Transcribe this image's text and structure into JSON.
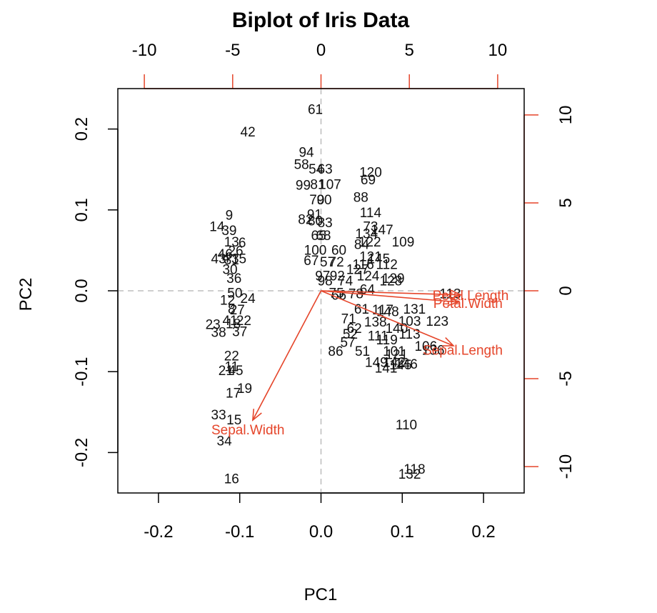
{
  "chart_data": {
    "type": "scatter",
    "title": "Biplot of Iris Data",
    "xlabel": "PC1",
    "ylabel": "PC2",
    "xlim": [
      -0.25,
      0.25
    ],
    "ylim": [
      -0.25,
      0.25
    ],
    "xticks": [
      "-0.2",
      "-0.1",
      "0.0",
      "0.1",
      "0.2"
    ],
    "yticks": [
      "-0.2",
      "-0.1",
      "0.0",
      "0.1",
      "0.2"
    ],
    "xtick_values": [
      -0.2,
      -0.1,
      0.0,
      0.1,
      0.2
    ],
    "ytick_values": [
      -0.2,
      -0.1,
      0.0,
      0.1,
      0.2
    ],
    "top_axis": {
      "range": [
        -11.5,
        11.5
      ],
      "ticks": [
        "-10",
        "-5",
        "0",
        "5",
        "10"
      ],
      "tick_values": [
        -10,
        -5,
        0,
        5,
        10
      ]
    },
    "right_axis": {
      "range": [
        -11.5,
        11.5
      ],
      "ticks": [
        "-10",
        "-5",
        "0",
        "5",
        "10"
      ],
      "tick_values": [
        -10,
        -5,
        0,
        5,
        10
      ]
    },
    "reference_lines": {
      "x": 0,
      "y": 0
    },
    "colors": {
      "points": "#111111",
      "loadings": "#e5452a",
      "reference": "#bdbdbd",
      "axis": "#000000"
    },
    "points": [
      {
        "label": "61",
        "x": -0.007,
        "y": 0.225
      },
      {
        "label": "42",
        "x": -0.09,
        "y": 0.197
      },
      {
        "label": "94",
        "x": -0.018,
        "y": 0.172
      },
      {
        "label": "58",
        "x": -0.024,
        "y": 0.157
      },
      {
        "label": "54",
        "x": -0.006,
        "y": 0.151
      },
      {
        "label": "63",
        "x": 0.005,
        "y": 0.151
      },
      {
        "label": "120",
        "x": 0.061,
        "y": 0.147
      },
      {
        "label": "69",
        "x": 0.058,
        "y": 0.138
      },
      {
        "label": "99",
        "x": -0.022,
        "y": 0.131
      },
      {
        "label": "81",
        "x": -0.004,
        "y": 0.132
      },
      {
        "label": "107",
        "x": 0.011,
        "y": 0.132
      },
      {
        "label": "88",
        "x": 0.049,
        "y": 0.116
      },
      {
        "label": "70",
        "x": -0.005,
        "y": 0.113
      },
      {
        "label": "90",
        "x": 0.004,
        "y": 0.113
      },
      {
        "label": "114",
        "x": 0.061,
        "y": 0.097
      },
      {
        "label": "91",
        "x": -0.008,
        "y": 0.095
      },
      {
        "label": "82",
        "x": -0.019,
        "y": 0.089
      },
      {
        "label": "80",
        "x": -0.007,
        "y": 0.087
      },
      {
        "label": "83",
        "x": 0.005,
        "y": 0.085
      },
      {
        "label": "73",
        "x": 0.061,
        "y": 0.08
      },
      {
        "label": "147",
        "x": 0.075,
        "y": 0.076
      },
      {
        "label": "134",
        "x": 0.056,
        "y": 0.071
      },
      {
        "label": "65",
        "x": -0.003,
        "y": 0.069
      },
      {
        "label": "68",
        "x": 0.003,
        "y": 0.069
      },
      {
        "label": "109",
        "x": 0.101,
        "y": 0.061
      },
      {
        "label": "122",
        "x": 0.06,
        "y": 0.061
      },
      {
        "label": "84",
        "x": 0.05,
        "y": 0.058
      },
      {
        "label": "100",
        "x": -0.007,
        "y": 0.051
      },
      {
        "label": "60",
        "x": 0.022,
        "y": 0.051
      },
      {
        "label": "121",
        "x": 0.061,
        "y": 0.043
      },
      {
        "label": "145",
        "x": 0.071,
        "y": 0.04
      },
      {
        "label": "67",
        "x": -0.012,
        "y": 0.038
      },
      {
        "label": "57",
        "x": 0.008,
        "y": 0.036
      },
      {
        "label": "72",
        "x": 0.019,
        "y": 0.036
      },
      {
        "label": "116",
        "x": 0.052,
        "y": 0.033
      },
      {
        "label": "112",
        "x": 0.081,
        "y": 0.033
      },
      {
        "label": "127",
        "x": 0.045,
        "y": 0.027
      },
      {
        "label": "97",
        "x": 0.002,
        "y": 0.019
      },
      {
        "label": "92",
        "x": 0.02,
        "y": 0.019
      },
      {
        "label": "124",
        "x": 0.058,
        "y": 0.019
      },
      {
        "label": "129",
        "x": 0.089,
        "y": 0.016
      },
      {
        "label": "98",
        "x": 0.005,
        "y": 0.013
      },
      {
        "label": "74",
        "x": 0.03,
        "y": 0.013
      },
      {
        "label": "128",
        "x": 0.086,
        "y": 0.013
      },
      {
        "label": "64",
        "x": 0.057,
        "y": 0.002
      },
      {
        "label": "75",
        "x": 0.019,
        "y": -0.002
      },
      {
        "label": "78",
        "x": 0.043,
        "y": -0.003
      },
      {
        "label": "66",
        "x": 0.022,
        "y": -0.005
      },
      {
        "label": "113",
        "x": 0.159,
        "y": -0.003
      },
      {
        "label": "61",
        "x": 0.05,
        "y": -0.022
      },
      {
        "label": "117",
        "x": 0.076,
        "y": -0.023
      },
      {
        "label": "131",
        "x": 0.115,
        "y": -0.022
      },
      {
        "label": "148",
        "x": 0.082,
        "y": -0.025
      },
      {
        "label": "71",
        "x": 0.034,
        "y": -0.034
      },
      {
        "label": "138",
        "x": 0.067,
        "y": -0.038
      },
      {
        "label": "103",
        "x": 0.109,
        "y": -0.037
      },
      {
        "label": "123",
        "x": 0.143,
        "y": -0.037
      },
      {
        "label": "62",
        "x": 0.041,
        "y": -0.046
      },
      {
        "label": "140",
        "x": 0.093,
        "y": -0.046
      },
      {
        "label": "52",
        "x": 0.036,
        "y": -0.053
      },
      {
        "label": "111",
        "x": 0.07,
        "y": -0.055
      },
      {
        "label": "113",
        "x": 0.109,
        "y": -0.053
      },
      {
        "label": "57",
        "x": 0.033,
        "y": -0.063
      },
      {
        "label": "119",
        "x": 0.081,
        "y": -0.06
      },
      {
        "label": "86",
        "x": 0.018,
        "y": -0.074
      },
      {
        "label": "51",
        "x": 0.051,
        "y": -0.074
      },
      {
        "label": "101",
        "x": 0.09,
        "y": -0.074
      },
      {
        "label": "106",
        "x": 0.129,
        "y": -0.068
      },
      {
        "label": "136",
        "x": 0.138,
        "y": -0.073
      },
      {
        "label": "121",
        "x": 0.093,
        "y": -0.078
      },
      {
        "label": "149",
        "x": 0.068,
        "y": -0.088
      },
      {
        "label": "142",
        "x": 0.09,
        "y": -0.088
      },
      {
        "label": "145",
        "x": 0.098,
        "y": -0.091
      },
      {
        "label": "146",
        "x": 0.105,
        "y": -0.09
      },
      {
        "label": "141",
        "x": 0.08,
        "y": -0.095
      },
      {
        "label": "110",
        "x": 0.105,
        "y": -0.165
      },
      {
        "label": "118",
        "x": 0.115,
        "y": -0.22
      },
      {
        "label": "132",
        "x": 0.109,
        "y": -0.226
      },
      {
        "label": "9",
        "x": -0.113,
        "y": 0.094
      },
      {
        "label": "14",
        "x": -0.128,
        "y": 0.08
      },
      {
        "label": "39",
        "x": -0.113,
        "y": 0.075
      },
      {
        "label": "13",
        "x": -0.11,
        "y": 0.061
      },
      {
        "label": "6",
        "x": -0.097,
        "y": 0.06
      },
      {
        "label": "26",
        "x": -0.105,
        "y": 0.05
      },
      {
        "label": "46",
        "x": -0.118,
        "y": 0.046
      },
      {
        "label": "43",
        "x": -0.126,
        "y": 0.04
      },
      {
        "label": "4",
        "x": -0.117,
        "y": 0.041
      },
      {
        "label": "31",
        "x": -0.11,
        "y": 0.039
      },
      {
        "label": "35",
        "x": -0.101,
        "y": 0.04
      },
      {
        "label": "30",
        "x": -0.112,
        "y": 0.027
      },
      {
        "label": "36",
        "x": -0.107,
        "y": 0.016
      },
      {
        "label": "50",
        "x": -0.106,
        "y": -0.002
      },
      {
        "label": "12",
        "x": -0.115,
        "y": -0.011
      },
      {
        "label": "24",
        "x": -0.09,
        "y": -0.009
      },
      {
        "label": "8",
        "x": -0.11,
        "y": -0.022
      },
      {
        "label": "27",
        "x": -0.103,
        "y": -0.023
      },
      {
        "label": "41",
        "x": -0.112,
        "y": -0.036
      },
      {
        "label": "22",
        "x": -0.095,
        "y": -0.036
      },
      {
        "label": "23",
        "x": -0.133,
        "y": -0.041
      },
      {
        "label": "18",
        "x": -0.108,
        "y": -0.04
      },
      {
        "label": "38",
        "x": -0.126,
        "y": -0.051
      },
      {
        "label": "37",
        "x": -0.1,
        "y": -0.05
      },
      {
        "label": "22",
        "x": -0.11,
        "y": -0.08
      },
      {
        "label": "11",
        "x": -0.11,
        "y": -0.093
      },
      {
        "label": "21",
        "x": -0.117,
        "y": -0.098
      },
      {
        "label": "45",
        "x": -0.105,
        "y": -0.098
      },
      {
        "label": "19",
        "x": -0.094,
        "y": -0.12
      },
      {
        "label": "17",
        "x": -0.108,
        "y": -0.126
      },
      {
        "label": "33",
        "x": -0.126,
        "y": -0.153
      },
      {
        "label": "15",
        "x": -0.107,
        "y": -0.159
      },
      {
        "label": "34",
        "x": -0.119,
        "y": -0.185
      },
      {
        "label": "16",
        "x": -0.11,
        "y": -0.232
      }
    ],
    "loadings": [
      {
        "name": "Petal.Length",
        "x": 0.172,
        "y": -0.005
      },
      {
        "name": "Petal.Width",
        "x": 0.169,
        "y": -0.014
      },
      {
        "name": "Sepal.Length",
        "x": 0.163,
        "y": -0.068
      },
      {
        "name": "Sepal.Width",
        "x": -0.084,
        "y": -0.16
      }
    ]
  }
}
